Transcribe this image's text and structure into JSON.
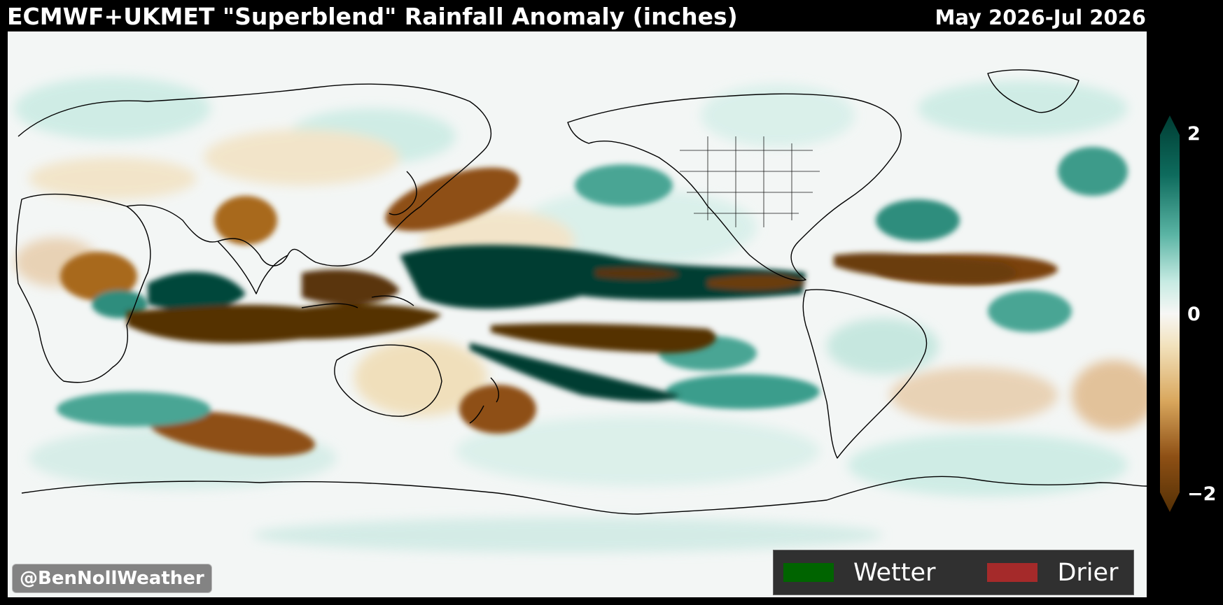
{
  "header": {
    "title": "ECMWF+UKMET \"Superblend\" Rainfall Anomaly (inches)",
    "period": "May 2026-Jul 2026"
  },
  "map": {
    "credit": "@BenNollWeather",
    "colors": {
      "ocean_background": "#f3f6f5",
      "strong_wet": "#003d33",
      "wet": "#2f8f7f",
      "light_wet": "#a9ddd2",
      "strong_dry": "#543005",
      "dry": "#9a5a14",
      "light_dry": "#ecd7ad",
      "coastline": "#000000"
    },
    "legend": {
      "items": [
        {
          "label": "Wetter",
          "color": "#006400"
        },
        {
          "label": "Drier",
          "color": "#a52a2a"
        }
      ]
    }
  },
  "colorbar": {
    "max_label": "2",
    "mid_label": "0",
    "min_label": "−2",
    "range": [
      -2,
      2
    ],
    "units": "inches"
  }
}
